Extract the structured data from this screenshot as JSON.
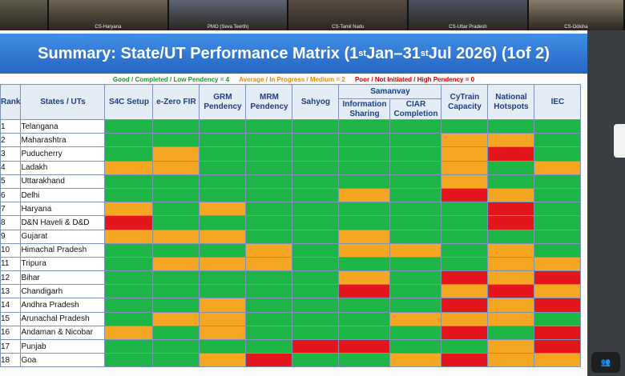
{
  "video_strip": {
    "tiles": [
      {
        "caption": "",
        "bg": "#5b5b47"
      },
      {
        "caption": "CS-Haryana",
        "bg": "#6e6250"
      },
      {
        "caption": "PMO (Seva Teerth)",
        "bg": "#5d6472"
      },
      {
        "caption": "CS-Tamil Nadu",
        "bg": "#584d44"
      },
      {
        "caption": "CS-Uttar Pradesh",
        "bg": "#4d5260"
      },
      {
        "caption": "CS-Odisha",
        "bg": "#8a7b6a"
      }
    ]
  },
  "slide": {
    "title_pre": "Summary: State/UT Performance Matrix (1",
    "title_sup1": "st",
    "title_mid": " Jan–31",
    "title_sup2": "st",
    "title_post": " Jul 2026) (1of 2)",
    "legend": {
      "good": "Good / Completed / Low Pendency = 4",
      "average": "Average / In Progress / Medium = 2",
      "poor": "Poor / Not Initiated / High Pendency = 0"
    },
    "colors": {
      "good": "#1db545",
      "average": "#f5a623",
      "poor": "#e3161d"
    },
    "headers": {
      "rank": "Rank",
      "state": "States / UTs",
      "s4c": "S4C Setup",
      "ezero": "e-Zero FIR",
      "grm": "GRM Pendency",
      "mrm": "MRM Pendency",
      "sahyog": "Sahyog",
      "samanvay": "Samanvay",
      "info": "Information Sharing",
      "ciar": "CIAR Completion",
      "cytrain": "CyTrain Capacity",
      "hotspots": "National Hotspots",
      "iec": "IEC"
    },
    "rows": [
      {
        "rank": "1",
        "state": "Telangana",
        "cells": [
          "g",
          "g",
          "g",
          "g",
          "g",
          "g",
          "g",
          "g",
          "g",
          "g"
        ]
      },
      {
        "rank": "2",
        "state": "Maharashtra",
        "cells": [
          "g",
          "g",
          "g",
          "g",
          "g",
          "g",
          "g",
          "o",
          "o",
          "g"
        ]
      },
      {
        "rank": "3",
        "state": "Puducherry",
        "cells": [
          "g",
          "o",
          "g",
          "g",
          "g",
          "g",
          "g",
          "o",
          "r",
          "g"
        ]
      },
      {
        "rank": "4",
        "state": "Ladakh",
        "cells": [
          "o",
          "o",
          "g",
          "g",
          "g",
          "g",
          "g",
          "o",
          "g",
          "o"
        ]
      },
      {
        "rank": "5",
        "state": "Uttarakhand",
        "cells": [
          "g",
          "g",
          "g",
          "g",
          "g",
          "g",
          "g",
          "o",
          "g",
          "g"
        ]
      },
      {
        "rank": "6",
        "state": "Delhi",
        "cells": [
          "g",
          "g",
          "g",
          "g",
          "g",
          "o",
          "g",
          "r",
          "o",
          "g"
        ]
      },
      {
        "rank": "7",
        "state": "Haryana",
        "cells": [
          "o",
          "g",
          "o",
          "g",
          "g",
          "g",
          "g",
          "g",
          "r",
          "g"
        ]
      },
      {
        "rank": "8",
        "state": "D&N Haveli & D&D",
        "cells": [
          "r",
          "g",
          "g",
          "g",
          "g",
          "g",
          "g",
          "g",
          "r",
          "g"
        ]
      },
      {
        "rank": "9",
        "state": "Gujarat",
        "cells": [
          "o",
          "o",
          "o",
          "g",
          "g",
          "o",
          "g",
          "g",
          "g",
          "g"
        ]
      },
      {
        "rank": "10",
        "state": "Himachal Pradesh",
        "cells": [
          "g",
          "g",
          "g",
          "o",
          "g",
          "o",
          "o",
          "g",
          "o",
          "g"
        ]
      },
      {
        "rank": "11",
        "state": "Tripura",
        "cells": [
          "g",
          "o",
          "o",
          "o",
          "g",
          "g",
          "g",
          "g",
          "o",
          "o"
        ]
      },
      {
        "rank": "12",
        "state": "Bihar",
        "cells": [
          "g",
          "g",
          "g",
          "g",
          "g",
          "o",
          "g",
          "r",
          "o",
          "r"
        ]
      },
      {
        "rank": "13",
        "state": "Chandigarh",
        "cells": [
          "g",
          "g",
          "g",
          "g",
          "g",
          "r",
          "g",
          "o",
          "r",
          "o"
        ]
      },
      {
        "rank": "14",
        "state": "Andhra Pradesh",
        "cells": [
          "g",
          "g",
          "o",
          "g",
          "g",
          "g",
          "g",
          "r",
          "o",
          "r"
        ]
      },
      {
        "rank": "15",
        "state": "Arunachal Pradesh",
        "cells": [
          "g",
          "o",
          "o",
          "g",
          "g",
          "g",
          "o",
          "o",
          "o",
          "g"
        ]
      },
      {
        "rank": "16",
        "state": "Andaman & Nicobar",
        "cells": [
          "o",
          "g",
          "o",
          "g",
          "g",
          "g",
          "g",
          "r",
          "g",
          "r"
        ]
      },
      {
        "rank": "17",
        "state": "Punjab",
        "cells": [
          "g",
          "g",
          "g",
          "g",
          "r",
          "r",
          "g",
          "g",
          "o",
          "r"
        ]
      },
      {
        "rank": "18",
        "state": "Goa",
        "cells": [
          "g",
          "g",
          "o",
          "r",
          "g",
          "g",
          "o",
          "r",
          "o",
          "o"
        ]
      }
    ]
  },
  "participants": {
    "icon": "people-icon",
    "count_label": "👥"
  }
}
